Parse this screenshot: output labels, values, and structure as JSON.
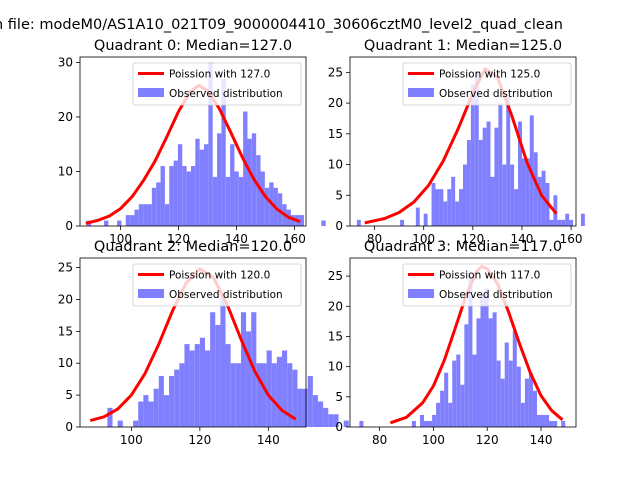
{
  "suptitle": "n file: modeM0/AS1A10_021T09_9000004410_30606cztM0_level2_quad_clean",
  "colors": {
    "bar": "#8080ff",
    "line": "#ff0000",
    "axis": "#000000"
  },
  "chart_data": [
    {
      "type": "bar",
      "title": "Quadrant 0: Median=127.0",
      "xlim": [
        86,
        164
      ],
      "ylim": [
        0,
        31
      ],
      "xticks": [
        100,
        120,
        140,
        160
      ],
      "yticks": [
        0,
        10,
        20,
        30
      ],
      "bin_start": 88.3,
      "bin_width": 1.5,
      "values": [
        1,
        0,
        0,
        0,
        1,
        0,
        0,
        1,
        0,
        2,
        2,
        3,
        4,
        4,
        4,
        7,
        8,
        11,
        4,
        11,
        12,
        15,
        11,
        10,
        11,
        16,
        14,
        15,
        30,
        9,
        17,
        27,
        9,
        15,
        10,
        9,
        21,
        16,
        17,
        13,
        10,
        7,
        8,
        7,
        6,
        4,
        3,
        2,
        2,
        2,
        0,
        0,
        0,
        0,
        1
      ],
      "fit_x": [
        88,
        92,
        96,
        100,
        104,
        108,
        112,
        116,
        120,
        124,
        127,
        130,
        134,
        138,
        142,
        146,
        150,
        154,
        158,
        162
      ],
      "fit_y": [
        0.5,
        1.0,
        1.8,
        3.2,
        5.4,
        8.4,
        12.0,
        16.4,
        21.0,
        24.6,
        25.8,
        24.8,
        21.6,
        17.2,
        12.6,
        8.6,
        5.4,
        3.1,
        1.6,
        0.8
      ],
      "legend": [
        "Poission with 127.0",
        "Observed distribution"
      ]
    },
    {
      "type": "bar",
      "title": "Quadrant 1: Median=125.0",
      "xlim": [
        70,
        162
      ],
      "ylim": [
        0,
        27.5
      ],
      "xticks": [
        80,
        100,
        120,
        140,
        160
      ],
      "yticks": [
        0,
        5,
        10,
        15,
        20,
        25
      ],
      "bin_start": 72.8,
      "bin_width": 1.6,
      "values": [
        1,
        0,
        0,
        0,
        0,
        0,
        0,
        0,
        0,
        0,
        0,
        1,
        0,
        0,
        0,
        3,
        0,
        2,
        0,
        7,
        6,
        6,
        4,
        6,
        8,
        4,
        6,
        10,
        14,
        23,
        25,
        14,
        16,
        17,
        8,
        16,
        20,
        10,
        21,
        10,
        6,
        17,
        11,
        11,
        18,
        12,
        8,
        9,
        7,
        1,
        5,
        1,
        1,
        2,
        1,
        0,
        0,
        2,
        0,
        0
      ],
      "fit_x": [
        76,
        84,
        90,
        96,
        102,
        108,
        114,
        120,
        125,
        130,
        136,
        142,
        148,
        154
      ],
      "fit_y": [
        0.5,
        1.2,
        2.2,
        3.9,
        6.6,
        10.6,
        15.8,
        21.6,
        25.6,
        24.2,
        17.8,
        10.4,
        5.0,
        2.0
      ],
      "legend": [
        "Poission with 125.0",
        "Observed distribution"
      ]
    },
    {
      "type": "bar",
      "title": "Quadrant 2: Median=120.0",
      "xlim": [
        85,
        151
      ],
      "ylim": [
        0,
        26.5
      ],
      "xticks": [
        100,
        120,
        140
      ],
      "yticks": [
        0,
        5,
        10,
        15,
        20,
        25
      ],
      "bin_start": 88.5,
      "bin_width": 1.5,
      "values": [
        0,
        0,
        0,
        3,
        0,
        1,
        0,
        0,
        1,
        4,
        5,
        4,
        6,
        8,
        5,
        8,
        9,
        10,
        13,
        12,
        13,
        14,
        12,
        18,
        16,
        21,
        13,
        10,
        10,
        18,
        15,
        18,
        10,
        10,
        12,
        10,
        11,
        12,
        10,
        9,
        6,
        6,
        8,
        5,
        4,
        3,
        2,
        2,
        0,
        1
      ],
      "fit_x": [
        88,
        92,
        96,
        100,
        104,
        108,
        112,
        116,
        120,
        124,
        128,
        132,
        136,
        140,
        144,
        148
      ],
      "fit_y": [
        1.0,
        1.6,
        2.8,
        5.0,
        8.4,
        13.0,
        18.2,
        22.6,
        24.8,
        23.4,
        19.2,
        13.8,
        8.8,
        5.0,
        2.6,
        1.2
      ],
      "legend": [
        "Poission with 120.0",
        "Observed distribution"
      ]
    },
    {
      "type": "bar",
      "title": "Quadrant 3: Median=117.0",
      "xlim": [
        69,
        153
      ],
      "ylim": [
        0,
        28
      ],
      "xticks": [
        80,
        100,
        120,
        140
      ],
      "yticks": [
        0,
        5,
        10,
        15,
        20,
        25
      ],
      "bin_start": 72.5,
      "bin_width": 1.5,
      "values": [
        1,
        0,
        0,
        0,
        0,
        0,
        0,
        0,
        0,
        0,
        0,
        0,
        0,
        1,
        0,
        2,
        1,
        1,
        2,
        4,
        6,
        9,
        4,
        11,
        12,
        7,
        17,
        25,
        12,
        18,
        22,
        23,
        18,
        19,
        11,
        8,
        14,
        11,
        16,
        10,
        4,
        8,
        9,
        6,
        2,
        2,
        2,
        1,
        1,
        0,
        1
      ],
      "fit_x": [
        84,
        90,
        96,
        100,
        104,
        108,
        112,
        116,
        118,
        120,
        124,
        128,
        132,
        136,
        140,
        144,
        148
      ],
      "fit_y": [
        0.7,
        1.6,
        4.0,
        6.8,
        11.0,
        16.2,
        21.6,
        25.8,
        26.6,
        26.2,
        23.6,
        19.0,
        13.8,
        9.0,
        5.2,
        2.7,
        1.2
      ],
      "legend": [
        "Poission with 117.0",
        "Observed distribution"
      ]
    }
  ]
}
